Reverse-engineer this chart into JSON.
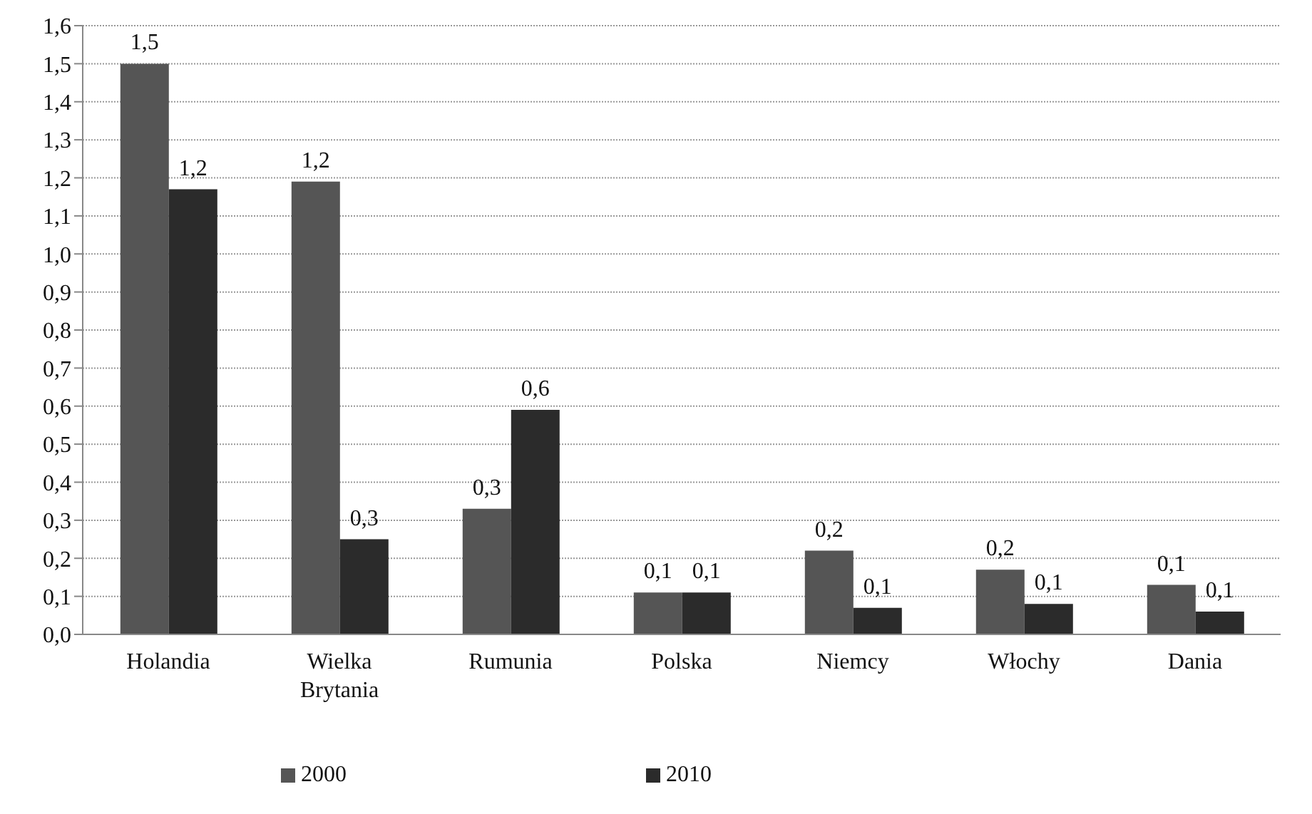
{
  "chart_data": {
    "type": "bar",
    "categories": [
      "Holandia",
      "Wielka Brytania",
      "Rumunia",
      "Polska",
      "Niemcy",
      "Włochy",
      "Dania"
    ],
    "series": [
      {
        "name": "2000",
        "color": "#555555",
        "values": [
          1.5,
          1.19,
          0.33,
          0.11,
          0.22,
          0.17,
          0.13
        ],
        "value_labels": [
          "1,5",
          "1,2",
          "0,3",
          "0,1",
          "0,2",
          "0,2",
          "0,1"
        ]
      },
      {
        "name": "2010",
        "color": "#2b2b2b",
        "values": [
          1.17,
          0.25,
          0.59,
          0.11,
          0.07,
          0.08,
          0.06
        ],
        "value_labels": [
          "1,2",
          "0,3",
          "0,6",
          "0,1",
          "0,1",
          "0,1",
          "0,1"
        ]
      }
    ],
    "ylim": [
      0,
      1.6
    ],
    "yticks": [
      {
        "value": 0,
        "label": "0,0"
      },
      {
        "value": 0.1,
        "label": "0,1"
      },
      {
        "value": 0.2,
        "label": "0,2"
      },
      {
        "value": 0.3,
        "label": "0,3"
      },
      {
        "value": 0.4,
        "label": "0,4"
      },
      {
        "value": 0.5,
        "label": "0,5"
      },
      {
        "value": 0.6,
        "label": "0,6"
      },
      {
        "value": 0.7,
        "label": "0,7"
      },
      {
        "value": 0.8,
        "label": "0,8"
      },
      {
        "value": 0.9,
        "label": "0,9"
      },
      {
        "value": 1.0,
        "label": "1,0"
      },
      {
        "value": 1.1,
        "label": "1,1"
      },
      {
        "value": 1.2,
        "label": "1,2"
      },
      {
        "value": 1.3,
        "label": "1,3"
      },
      {
        "value": 1.4,
        "label": "1,4"
      },
      {
        "value": 1.5,
        "label": "1,5"
      },
      {
        "value": 1.6,
        "label": "1,6"
      }
    ],
    "grid": "y",
    "legend": "bottom"
  }
}
